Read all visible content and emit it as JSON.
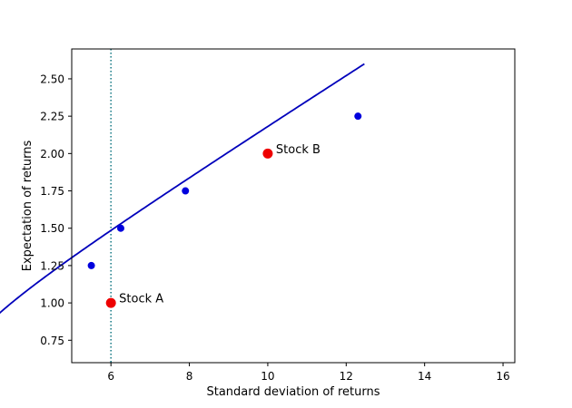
{
  "chart_data": {
    "type": "line",
    "title": "",
    "xlabel": "Standard deviation of returns",
    "ylabel": "Expectation of returns",
    "xlim": [
      5.0,
      16.3
    ],
    "ylim": [
      0.6,
      2.7
    ],
    "xticks": [
      6,
      8,
      10,
      12,
      14,
      16
    ],
    "yticks": [
      0.75,
      1.0,
      1.25,
      1.5,
      1.75,
      2.0,
      2.25,
      2.5
    ],
    "ytick_labels": [
      "0.75",
      "1.00",
      "1.25",
      "1.50",
      "1.75",
      "2.00",
      "2.25",
      "2.50"
    ],
    "grid": false,
    "frontier": {
      "expectation_range": [
        0.7,
        2.6
      ],
      "minimum_variance_point": {
        "x": 5.5,
        "y": 1.25
      },
      "color": "#0000bb"
    },
    "vertical_line": {
      "x": 6,
      "style": "dotted",
      "color": "#1f7f8a"
    },
    "blue_points": [
      {
        "x": 5.5,
        "y": 1.25
      },
      {
        "x": 6.25,
        "y": 1.5
      },
      {
        "x": 7.9,
        "y": 1.75
      },
      {
        "x": 12.3,
        "y": 2.25
      }
    ],
    "stocks": [
      {
        "label": "Stock A",
        "x": 6,
        "y": 1.0
      },
      {
        "label": "Stock B",
        "x": 10,
        "y": 2.0
      }
    ],
    "colors": {
      "point": "#0000dd",
      "stock": "#ee0000",
      "line": "#0000bb"
    }
  }
}
